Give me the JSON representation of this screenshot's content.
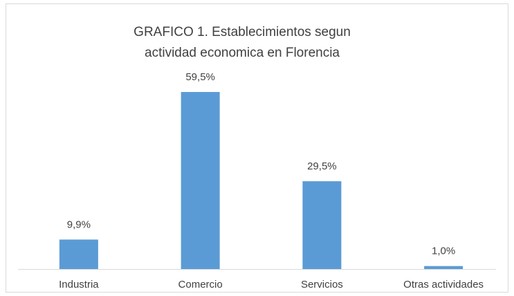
{
  "chart_data": {
    "type": "bar",
    "title": "GRAFICO 1. Establecimientos segun actividad economica en Florencia",
    "categories": [
      "Industria",
      "Comercio",
      "Servicios",
      "Otras actividades"
    ],
    "values": [
      9.9,
      59.5,
      29.5,
      1.0
    ],
    "value_labels": [
      "9,9%",
      "59,5%",
      "29,5%",
      "1,0%"
    ],
    "color": "#5b9bd5"
  }
}
